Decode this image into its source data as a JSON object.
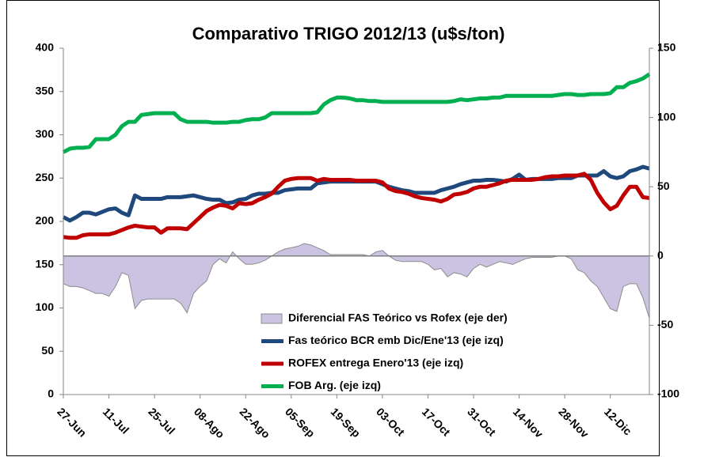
{
  "chart_data": {
    "type": "line",
    "title": "Comparativo TRIGO 2012/13 (u$s/ton)",
    "categories": [
      "27-Jun",
      null,
      null,
      null,
      null,
      null,
      null,
      "11-Jul",
      null,
      null,
      null,
      null,
      null,
      null,
      "25-Jul",
      null,
      null,
      null,
      null,
      null,
      null,
      "08-Ago",
      null,
      null,
      null,
      null,
      null,
      null,
      "22-Ago",
      null,
      null,
      null,
      null,
      null,
      null,
      "05-Sep",
      null,
      null,
      null,
      null,
      null,
      null,
      "19-Sep",
      null,
      null,
      null,
      null,
      null,
      null,
      "03-Oct",
      null,
      null,
      null,
      null,
      null,
      null,
      "17-Oct",
      null,
      null,
      null,
      null,
      null,
      null,
      "31-Oct",
      null,
      null,
      null,
      null,
      null,
      null,
      "14-Nov",
      null,
      null,
      null,
      null,
      null,
      null,
      "28-Nov",
      null,
      null,
      null,
      null,
      null,
      null,
      "12-Dic",
      null,
      null,
      null,
      null,
      null,
      null
    ],
    "ylim": [
      0,
      400
    ],
    "yticks": [
      0,
      50,
      100,
      150,
      200,
      250,
      300,
      350,
      400
    ],
    "y2lim": [
      -100,
      150
    ],
    "y2ticks": [
      -100,
      -50,
      0,
      50,
      100,
      150
    ],
    "grid": false,
    "legend": "bottom",
    "series": [
      {
        "name": "Diferencial FAS Teórico vs Rofex (eje der)",
        "type": "area",
        "axis": "y2",
        "color": "#cbc3e1",
        "values": [
          -20,
          -22,
          -22,
          -23,
          -25,
          -27,
          -27,
          -29,
          -22,
          -12,
          -14,
          -38,
          -32,
          -31,
          -31,
          -31,
          -31,
          -31,
          -34,
          -41,
          -27,
          -22,
          -18,
          -6,
          -2,
          -5,
          3,
          -2,
          -6,
          -6,
          -5,
          -3,
          0,
          3,
          5,
          6,
          7,
          9,
          8,
          6,
          4,
          1,
          1,
          1,
          1,
          1,
          1,
          0,
          3,
          4,
          0,
          -3,
          -4,
          -4,
          -4,
          -4,
          -6,
          -10,
          -9,
          -15,
          -12,
          -13,
          -15,
          -9,
          -6,
          -8,
          -6,
          -4,
          -5,
          -6,
          -4,
          -2,
          -1,
          -1,
          -1,
          -1,
          0,
          0,
          -2,
          -10,
          -12,
          -18,
          -22,
          -30,
          -38,
          -40,
          -22,
          -20,
          -20,
          -30,
          -45
        ]
      },
      {
        "name": "Fas teórico BCR emb Dic/Ene'13 (eje izq)",
        "color": "#1f497d",
        "values": [
          205,
          201,
          205,
          210,
          210,
          208,
          211,
          214,
          215,
          210,
          207,
          230,
          226,
          226,
          226,
          226,
          228,
          228,
          228,
          229,
          230,
          228,
          226,
          225,
          225,
          221,
          222,
          225,
          226,
          230,
          232,
          232,
          233,
          233,
          236,
          237,
          238,
          238,
          238,
          244,
          245,
          246,
          246,
          246,
          246,
          246,
          246,
          246,
          246,
          243,
          240,
          238,
          236,
          235,
          233,
          233,
          233,
          233,
          236,
          238,
          240,
          243,
          245,
          247,
          247,
          248,
          248,
          247,
          246,
          249,
          254,
          248,
          249,
          249,
          249,
          249,
          250,
          250,
          250,
          253,
          253,
          253,
          253,
          258,
          252,
          250,
          252,
          258,
          260,
          263,
          261
        ]
      },
      {
        "name": "ROFEX entrega Enero'13 (eje izq)",
        "color": "#c00000",
        "values": [
          182,
          181,
          181,
          184,
          185,
          185,
          185,
          185,
          187,
          190,
          193,
          195,
          194,
          193,
          193,
          187,
          192,
          192,
          192,
          191,
          198,
          205,
          212,
          216,
          219,
          218,
          215,
          221,
          220,
          221,
          225,
          228,
          232,
          240,
          247,
          249,
          250,
          250,
          250,
          247,
          249,
          248,
          248,
          248,
          248,
          247,
          247,
          247,
          247,
          245,
          238,
          235,
          234,
          232,
          229,
          227,
          226,
          225,
          223,
          226,
          231,
          232,
          234,
          238,
          240,
          240,
          242,
          244,
          247,
          248,
          248,
          248,
          248,
          249,
          251,
          252,
          252,
          253,
          253,
          253,
          255,
          248,
          233,
          222,
          214,
          218,
          230,
          240,
          240,
          228,
          227
        ]
      },
      {
        "name": "FOB Arg. (eje izq)",
        "color": "#00b050",
        "values": [
          280,
          284,
          285,
          285,
          286,
          295,
          295,
          295,
          300,
          310,
          315,
          315,
          323,
          324,
          325,
          325,
          325,
          325,
          318,
          315,
          315,
          315,
          315,
          314,
          314,
          314,
          315,
          315,
          317,
          318,
          318,
          320,
          325,
          325,
          325,
          325,
          325,
          325,
          325,
          326,
          335,
          340,
          343,
          343,
          342,
          340,
          340,
          339,
          339,
          338,
          338,
          338,
          338,
          338,
          338,
          338,
          338,
          338,
          338,
          338,
          339,
          341,
          340,
          341,
          342,
          342,
          343,
          343,
          345,
          345,
          345,
          345,
          345,
          345,
          345,
          345,
          346,
          347,
          347,
          346,
          346,
          347,
          347,
          347,
          348,
          355,
          355,
          360,
          362,
          365,
          370
        ]
      }
    ]
  }
}
